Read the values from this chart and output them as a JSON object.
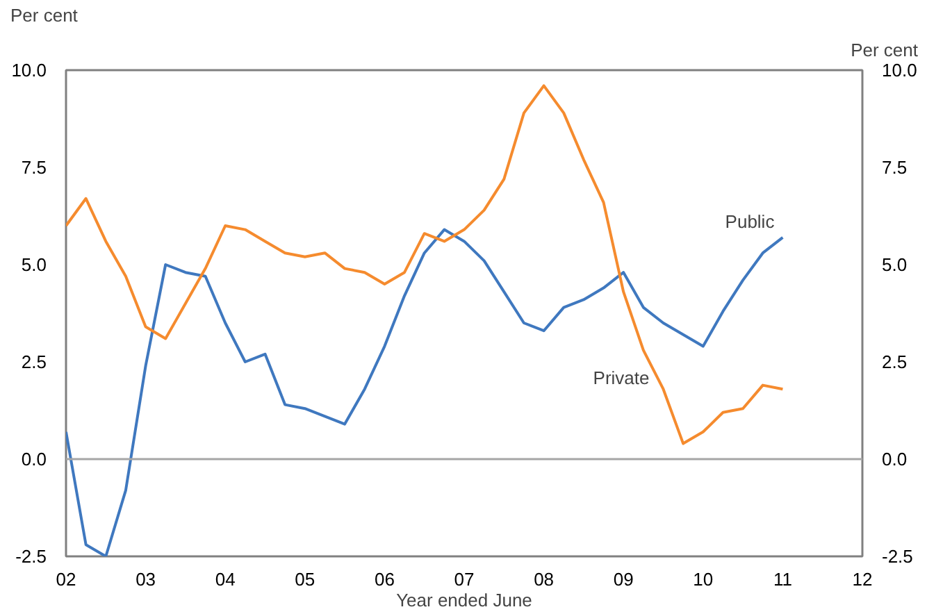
{
  "chart_data": {
    "type": "line",
    "xlabel": "Year ended June",
    "ylabel": "Per cent",
    "y2label": "Per cent",
    "x": [
      2002.0,
      2002.25,
      2002.5,
      2002.75,
      2003.0,
      2003.25,
      2003.5,
      2003.75,
      2004.0,
      2004.25,
      2004.5,
      2004.75,
      2005.0,
      2005.25,
      2005.5,
      2005.75,
      2006.0,
      2006.25,
      2006.5,
      2006.75,
      2007.0,
      2007.25,
      2007.5,
      2007.75,
      2008.0,
      2008.25,
      2008.5,
      2008.75,
      2009.0,
      2009.25,
      2009.5,
      2009.75,
      2010.0,
      2010.25,
      2010.5,
      2010.75,
      2011.0
    ],
    "series": [
      {
        "name": "Public",
        "color": "#3f78bf",
        "values": [
          0.7,
          -2.2,
          -2.5,
          -0.8,
          2.4,
          5.0,
          4.8,
          4.7,
          3.5,
          2.5,
          2.7,
          1.4,
          1.3,
          1.1,
          0.9,
          1.8,
          2.9,
          4.2,
          5.3,
          5.9,
          5.6,
          5.1,
          4.3,
          3.5,
          3.3,
          3.9,
          4.1,
          4.4,
          4.8,
          3.9,
          3.5,
          3.2,
          2.9,
          3.8,
          4.6,
          5.3,
          5.7
        ]
      },
      {
        "name": "Private",
        "color": "#f58b2e",
        "values": [
          6.0,
          6.7,
          5.6,
          4.7,
          3.4,
          3.1,
          4.0,
          4.9,
          6.0,
          5.9,
          5.6,
          5.3,
          5.2,
          5.3,
          4.9,
          4.8,
          4.5,
          4.8,
          5.8,
          5.6,
          5.9,
          6.4,
          7.2,
          8.9,
          9.6,
          8.9,
          7.7,
          6.6,
          4.3,
          2.8,
          1.8,
          0.4,
          0.7,
          1.2,
          1.3,
          1.9,
          1.8
        ]
      }
    ],
    "xlim": [
      2002,
      2012
    ],
    "xticks": [
      {
        "value": 2002,
        "label": "02"
      },
      {
        "value": 2003,
        "label": "03"
      },
      {
        "value": 2004,
        "label": "04"
      },
      {
        "value": 2005,
        "label": "05"
      },
      {
        "value": 2006,
        "label": "06"
      },
      {
        "value": 2007,
        "label": "07"
      },
      {
        "value": 2008,
        "label": "08"
      },
      {
        "value": 2009,
        "label": "09"
      },
      {
        "value": 2010,
        "label": "10"
      },
      {
        "value": 2011,
        "label": "11"
      },
      {
        "value": 2012,
        "label": "12"
      }
    ],
    "ylim": [
      -2.5,
      10
    ],
    "yticks": [
      {
        "value": -2.5,
        "label": "-2.5"
      },
      {
        "value": 0,
        "label": "0.0"
      },
      {
        "value": 2.5,
        "label": "2.5"
      },
      {
        "value": 5,
        "label": "5.0"
      },
      {
        "value": 7.5,
        "label": "7.5"
      },
      {
        "value": 10,
        "label": "10.0"
      }
    ],
    "y2lim": [
      -2.5,
      10
    ],
    "y2ticks": [
      {
        "value": -2.5,
        "label": "-2.5"
      },
      {
        "value": 0,
        "label": "0.0"
      },
      {
        "value": 2.5,
        "label": "2.5"
      },
      {
        "value": 5,
        "label": "5.0"
      },
      {
        "value": 7.5,
        "label": "7.5"
      },
      {
        "value": 10,
        "label": "10.0"
      }
    ],
    "ref_lines": [
      {
        "axis": "y",
        "value": 0,
        "color": "#a6a6a6"
      }
    ],
    "grid": false,
    "legend": false,
    "marker": "none",
    "line_style": "solid"
  }
}
